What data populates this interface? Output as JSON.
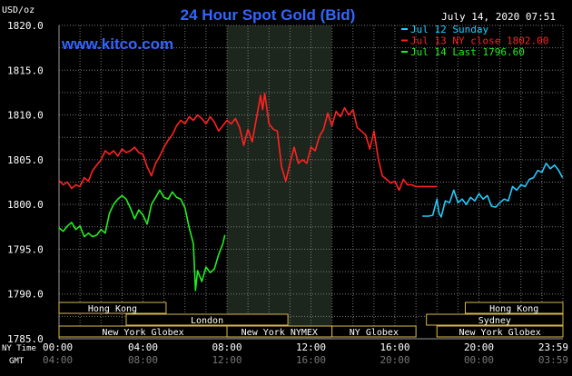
{
  "chart_data": {
    "type": "line",
    "title": "24 Hour Spot Gold (Bid)",
    "website": "www.kitco.com",
    "timestamp": "July 14, 2020 07:51",
    "unit_label": "USD/oz",
    "ylim": [
      1785.0,
      1820.0
    ],
    "y_ticks": [
      "1820.0",
      "1815.0",
      "1810.0",
      "1805.0",
      "1800.0",
      "1795.0",
      "1790.0",
      "1785.0"
    ],
    "y_tick_values": [
      1820,
      1815,
      1810,
      1805,
      1800,
      1795,
      1790,
      1785
    ],
    "xlim_hours": [
      0,
      24
    ],
    "x_ticks_ny": [
      "00:00",
      "04:00",
      "08:00",
      "12:00",
      "16:00",
      "20:00",
      "23:59"
    ],
    "x_ticks_gmt": [
      "04:00",
      "08:00",
      "12:00",
      "16:00",
      "20:00",
      "00:00",
      "03:59"
    ],
    "x_tick_hours": [
      0,
      4,
      8,
      12,
      16,
      20,
      23.98
    ],
    "x_axis_label_ny": "NY Time",
    "x_axis_label_gmt": "GMT",
    "grid": true,
    "legend_position": "top-right",
    "shaded_region_hours": [
      8,
      12.98
    ],
    "series": [
      {
        "name": "Jul 12 Sunday",
        "color": "#22ccff",
        "points": [
          [
            17.3,
            1798.7
          ],
          [
            17.6,
            1798.7
          ],
          [
            17.8,
            1798.8
          ],
          [
            18.0,
            1800.6
          ],
          [
            18.1,
            1799.0
          ],
          [
            18.2,
            1798.6
          ],
          [
            18.4,
            1800.4
          ],
          [
            18.6,
            1800.2
          ],
          [
            18.8,
            1801.6
          ],
          [
            19.0,
            1800.2
          ],
          [
            19.2,
            1800.6
          ],
          [
            19.4,
            1800.0
          ],
          [
            19.6,
            1800.8
          ],
          [
            19.8,
            1800.4
          ],
          [
            20.0,
            1801.2
          ],
          [
            20.2,
            1800.6
          ],
          [
            20.4,
            1801.0
          ],
          [
            20.6,
            1799.8
          ],
          [
            20.8,
            1799.7
          ],
          [
            21.0,
            1800.2
          ],
          [
            21.2,
            1800.6
          ],
          [
            21.4,
            1800.4
          ],
          [
            21.6,
            1802.0
          ],
          [
            21.8,
            1801.6
          ],
          [
            22.0,
            1802.2
          ],
          [
            22.2,
            1802.0
          ],
          [
            22.4,
            1802.8
          ],
          [
            22.6,
            1803.0
          ],
          [
            22.8,
            1803.8
          ],
          [
            23.0,
            1803.6
          ],
          [
            23.2,
            1804.6
          ],
          [
            23.4,
            1804.0
          ],
          [
            23.6,
            1804.4
          ],
          [
            23.8,
            1803.8
          ],
          [
            23.98,
            1803.0
          ]
        ]
      },
      {
        "name": "Jul 13 NY close 1802.00",
        "color": "#ff2222",
        "points": [
          [
            0.0,
            1802.7
          ],
          [
            0.2,
            1802.2
          ],
          [
            0.4,
            1802.5
          ],
          [
            0.6,
            1801.8
          ],
          [
            0.8,
            1802.2
          ],
          [
            1.0,
            1802.0
          ],
          [
            1.2,
            1803.0
          ],
          [
            1.4,
            1802.6
          ],
          [
            1.6,
            1803.8
          ],
          [
            1.8,
            1804.4
          ],
          [
            2.0,
            1805.0
          ],
          [
            2.2,
            1806.0
          ],
          [
            2.4,
            1805.6
          ],
          [
            2.6,
            1806.0
          ],
          [
            2.8,
            1805.4
          ],
          [
            3.0,
            1806.2
          ],
          [
            3.2,
            1805.8
          ],
          [
            3.4,
            1806.0
          ],
          [
            3.6,
            1806.4
          ],
          [
            3.8,
            1805.8
          ],
          [
            4.0,
            1805.6
          ],
          [
            4.2,
            1804.2
          ],
          [
            4.4,
            1803.2
          ],
          [
            4.6,
            1804.6
          ],
          [
            4.8,
            1805.4
          ],
          [
            5.0,
            1806.4
          ],
          [
            5.2,
            1807.2
          ],
          [
            5.4,
            1807.8
          ],
          [
            5.6,
            1808.8
          ],
          [
            5.8,
            1809.4
          ],
          [
            6.0,
            1809.0
          ],
          [
            6.2,
            1809.8
          ],
          [
            6.4,
            1809.4
          ],
          [
            6.6,
            1810.0
          ],
          [
            6.8,
            1809.6
          ],
          [
            7.0,
            1809.0
          ],
          [
            7.2,
            1809.8
          ],
          [
            7.4,
            1809.2
          ],
          [
            7.6,
            1808.2
          ],
          [
            7.8,
            1808.8
          ],
          [
            8.0,
            1809.4
          ],
          [
            8.2,
            1809.0
          ],
          [
            8.4,
            1809.6
          ],
          [
            8.6,
            1808.6
          ],
          [
            8.8,
            1806.6
          ],
          [
            9.0,
            1808.4
          ],
          [
            9.2,
            1807.0
          ],
          [
            9.4,
            1809.6
          ],
          [
            9.6,
            1812.2
          ],
          [
            9.7,
            1810.6
          ],
          [
            9.8,
            1812.4
          ],
          [
            10.0,
            1809.0
          ],
          [
            10.2,
            1808.4
          ],
          [
            10.4,
            1808.2
          ],
          [
            10.6,
            1804.2
          ],
          [
            10.8,
            1802.6
          ],
          [
            11.0,
            1804.6
          ],
          [
            11.2,
            1806.4
          ],
          [
            11.4,
            1804.6
          ],
          [
            11.6,
            1805.0
          ],
          [
            11.8,
            1804.6
          ],
          [
            12.0,
            1806.4
          ],
          [
            12.2,
            1806.0
          ],
          [
            12.4,
            1807.6
          ],
          [
            12.6,
            1808.4
          ],
          [
            12.8,
            1810.2
          ],
          [
            13.0,
            1808.8
          ],
          [
            13.2,
            1810.4
          ],
          [
            13.4,
            1809.8
          ],
          [
            13.6,
            1810.8
          ],
          [
            13.8,
            1810.0
          ],
          [
            14.0,
            1810.6
          ],
          [
            14.2,
            1808.6
          ],
          [
            14.4,
            1808.2
          ],
          [
            14.6,
            1807.8
          ],
          [
            14.8,
            1806.2
          ],
          [
            15.0,
            1808.2
          ],
          [
            15.2,
            1805.2
          ],
          [
            15.4,
            1803.2
          ],
          [
            15.6,
            1802.8
          ],
          [
            15.8,
            1802.4
          ],
          [
            16.0,
            1802.6
          ],
          [
            16.2,
            1801.6
          ],
          [
            16.4,
            1802.8
          ],
          [
            16.6,
            1802.2
          ],
          [
            16.8,
            1802.2
          ],
          [
            17.0,
            1802.0
          ],
          [
            17.5,
            1802.0
          ],
          [
            18.0,
            1802.0
          ]
        ]
      },
      {
        "name": "Jul 14 Last 1796.60",
        "color": "#22ee22",
        "points": [
          [
            0.0,
            1797.4
          ],
          [
            0.2,
            1797.0
          ],
          [
            0.4,
            1797.6
          ],
          [
            0.6,
            1798.0
          ],
          [
            0.8,
            1797.2
          ],
          [
            1.0,
            1797.6
          ],
          [
            1.2,
            1796.4
          ],
          [
            1.4,
            1796.8
          ],
          [
            1.6,
            1796.4
          ],
          [
            1.8,
            1796.6
          ],
          [
            2.0,
            1797.2
          ],
          [
            2.2,
            1796.8
          ],
          [
            2.4,
            1799.0
          ],
          [
            2.6,
            1800.0
          ],
          [
            2.8,
            1800.6
          ],
          [
            3.0,
            1801.0
          ],
          [
            3.2,
            1800.6
          ],
          [
            3.4,
            1799.6
          ],
          [
            3.6,
            1798.4
          ],
          [
            3.8,
            1799.4
          ],
          [
            4.0,
            1798.8
          ],
          [
            4.2,
            1797.8
          ],
          [
            4.4,
            1800.0
          ],
          [
            4.6,
            1800.8
          ],
          [
            4.8,
            1801.6
          ],
          [
            5.0,
            1800.8
          ],
          [
            5.2,
            1800.6
          ],
          [
            5.4,
            1801.4
          ],
          [
            5.6,
            1800.8
          ],
          [
            5.8,
            1800.6
          ],
          [
            6.0,
            1799.6
          ],
          [
            6.2,
            1797.4
          ],
          [
            6.4,
            1795.6
          ],
          [
            6.5,
            1790.4
          ],
          [
            6.6,
            1792.6
          ],
          [
            6.8,
            1791.4
          ],
          [
            7.0,
            1793.0
          ],
          [
            7.2,
            1792.4
          ],
          [
            7.4,
            1792.8
          ],
          [
            7.6,
            1794.4
          ],
          [
            7.8,
            1795.6
          ],
          [
            7.9,
            1796.6
          ]
        ]
      }
    ],
    "sessions": [
      {
        "label": "Hong Kong",
        "row": 1,
        "start": -0.2,
        "end": 5.1
      },
      {
        "label": "Hong Kong",
        "row": 1,
        "start": 19.35,
        "end": 24.2
      },
      {
        "label": "London",
        "row": 2,
        "start": 3.2,
        "end": 10.9
      },
      {
        "label": "Sydney",
        "row": 2,
        "start": 17.5,
        "end": 24.2
      },
      {
        "label": "New York Globex",
        "row": 3,
        "start": 0.0,
        "end": 8.0
      },
      {
        "label": "New York NYMEX",
        "row": 3,
        "start": 8.0,
        "end": 13.0
      },
      {
        "label": "NY Globex",
        "row": 3,
        "start": 13.0,
        "end": 17.0
      },
      {
        "label": "New York Globex",
        "row": 3,
        "start": 18.0,
        "end": 24.0
      }
    ]
  }
}
